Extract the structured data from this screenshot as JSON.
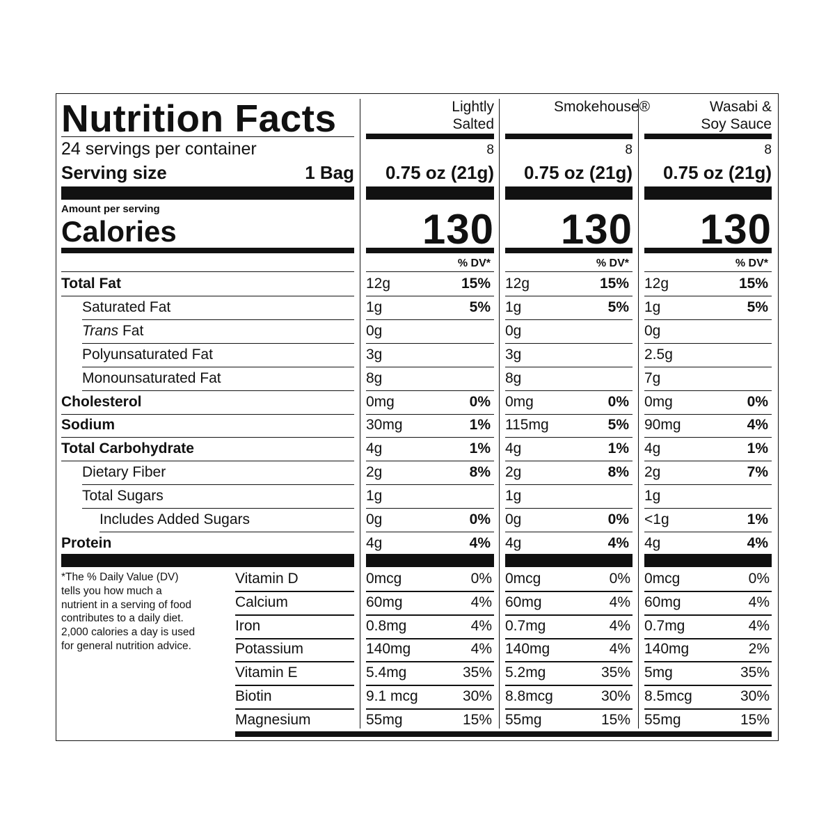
{
  "title": "Nutrition Facts",
  "servings_per_container": "24 servings per container",
  "serving_size_label": "Serving size",
  "serving_size": "1 Bag",
  "amount_per_serving": "Amount per serving",
  "calories_label": "Calories",
  "dv_header": "% DV*",
  "columns": [
    {
      "name": "Lightly Salted",
      "servings": "8",
      "serving_size": "0.75 oz (21g)",
      "calories": "130"
    },
    {
      "name": "Smokehouse®",
      "servings": "8",
      "serving_size": "0.75 oz (21g)",
      "calories": "130"
    },
    {
      "name": "Wasabi & Soy Sauce",
      "servings": "8",
      "serving_size": "0.75 oz (21g)",
      "calories": "130"
    }
  ],
  "nutrients": [
    {
      "label": "Total Fat",
      "bold": true,
      "indent": 0,
      "values": [
        [
          "12g",
          "15%"
        ],
        [
          "12g",
          "15%"
        ],
        [
          "12g",
          "15%"
        ]
      ]
    },
    {
      "label": "Saturated Fat",
      "bold": false,
      "indent": 1,
      "values": [
        [
          "1g",
          "5%"
        ],
        [
          "1g",
          "5%"
        ],
        [
          "1g",
          "5%"
        ]
      ]
    },
    {
      "label_italic": "Trans",
      "label": "Fat",
      "bold": false,
      "indent": 1,
      "values": [
        [
          "0g",
          null
        ],
        [
          "0g",
          null
        ],
        [
          "0g",
          null
        ]
      ]
    },
    {
      "label": "Polyunsaturated Fat",
      "bold": false,
      "indent": 1,
      "values": [
        [
          "3g",
          null
        ],
        [
          "3g",
          null
        ],
        [
          "2.5g",
          null
        ]
      ]
    },
    {
      "label": "Monounsaturated Fat",
      "bold": false,
      "indent": 1,
      "values": [
        [
          "8g",
          null
        ],
        [
          "8g",
          null
        ],
        [
          "7g",
          null
        ]
      ]
    },
    {
      "label": "Cholesterol",
      "bold": true,
      "indent": 0,
      "values": [
        [
          "0mg",
          "0%"
        ],
        [
          "0mg",
          "0%"
        ],
        [
          "0mg",
          "0%"
        ]
      ]
    },
    {
      "label": "Sodium",
      "bold": true,
      "indent": 0,
      "values": [
        [
          "30mg",
          "1%"
        ],
        [
          "115mg",
          "5%"
        ],
        [
          "90mg",
          "4%"
        ]
      ]
    },
    {
      "label": "Total Carbohydrate",
      "bold": true,
      "indent": 0,
      "values": [
        [
          "4g",
          "1%"
        ],
        [
          "4g",
          "1%"
        ],
        [
          "4g",
          "1%"
        ]
      ]
    },
    {
      "label": "Dietary Fiber",
      "bold": false,
      "indent": 1,
      "values": [
        [
          "2g",
          "8%"
        ],
        [
          "2g",
          "8%"
        ],
        [
          "2g",
          "7%"
        ]
      ]
    },
    {
      "label": "Total Sugars",
      "bold": false,
      "indent": 1,
      "values": [
        [
          "1g",
          null
        ],
        [
          "1g",
          null
        ],
        [
          "1g",
          null
        ]
      ]
    },
    {
      "label": "Includes Added Sugars",
      "bold": false,
      "indent": 2,
      "values": [
        [
          "0g",
          "0%"
        ],
        [
          "0g",
          "0%"
        ],
        [
          "<1g",
          "1%"
        ]
      ]
    },
    {
      "label": "Protein",
      "bold": true,
      "indent": 0,
      "values": [
        [
          "4g",
          "4%"
        ],
        [
          "4g",
          "4%"
        ],
        [
          "4g",
          "4%"
        ]
      ]
    }
  ],
  "vitamins": [
    {
      "label": "Vitamin D",
      "values": [
        [
          "0mcg",
          "0%"
        ],
        [
          "0mcg",
          "0%"
        ],
        [
          "0mcg",
          "0%"
        ]
      ]
    },
    {
      "label": "Calcium",
      "values": [
        [
          "60mg",
          "4%"
        ],
        [
          "60mg",
          "4%"
        ],
        [
          "60mg",
          "4%"
        ]
      ]
    },
    {
      "label": "Iron",
      "values": [
        [
          "0.8mg",
          "4%"
        ],
        [
          "0.7mg",
          "4%"
        ],
        [
          "0.7mg",
          "4%"
        ]
      ]
    },
    {
      "label": "Potassium",
      "values": [
        [
          "140mg",
          "4%"
        ],
        [
          "140mg",
          "4%"
        ],
        [
          "140mg",
          "2%"
        ]
      ]
    },
    {
      "label": "Vitamin E",
      "values": [
        [
          "5.4mg",
          "35%"
        ],
        [
          "5.2mg",
          "35%"
        ],
        [
          "5mg",
          "35%"
        ]
      ]
    },
    {
      "label": "Biotin",
      "values": [
        [
          "9.1 mcg",
          "30%"
        ],
        [
          "8.8mcg",
          "30%"
        ],
        [
          "8.5mcg",
          "30%"
        ]
      ]
    },
    {
      "label": "Magnesium",
      "values": [
        [
          "55mg",
          "15%"
        ],
        [
          "55mg",
          "15%"
        ],
        [
          "55mg",
          "15%"
        ]
      ]
    }
  ],
  "footnote": "*The % Daily Value (DV) tells you how much a nutrient in a serving of food contributes to a daily diet. 2,000 calories a day is used for general nutrition advice."
}
